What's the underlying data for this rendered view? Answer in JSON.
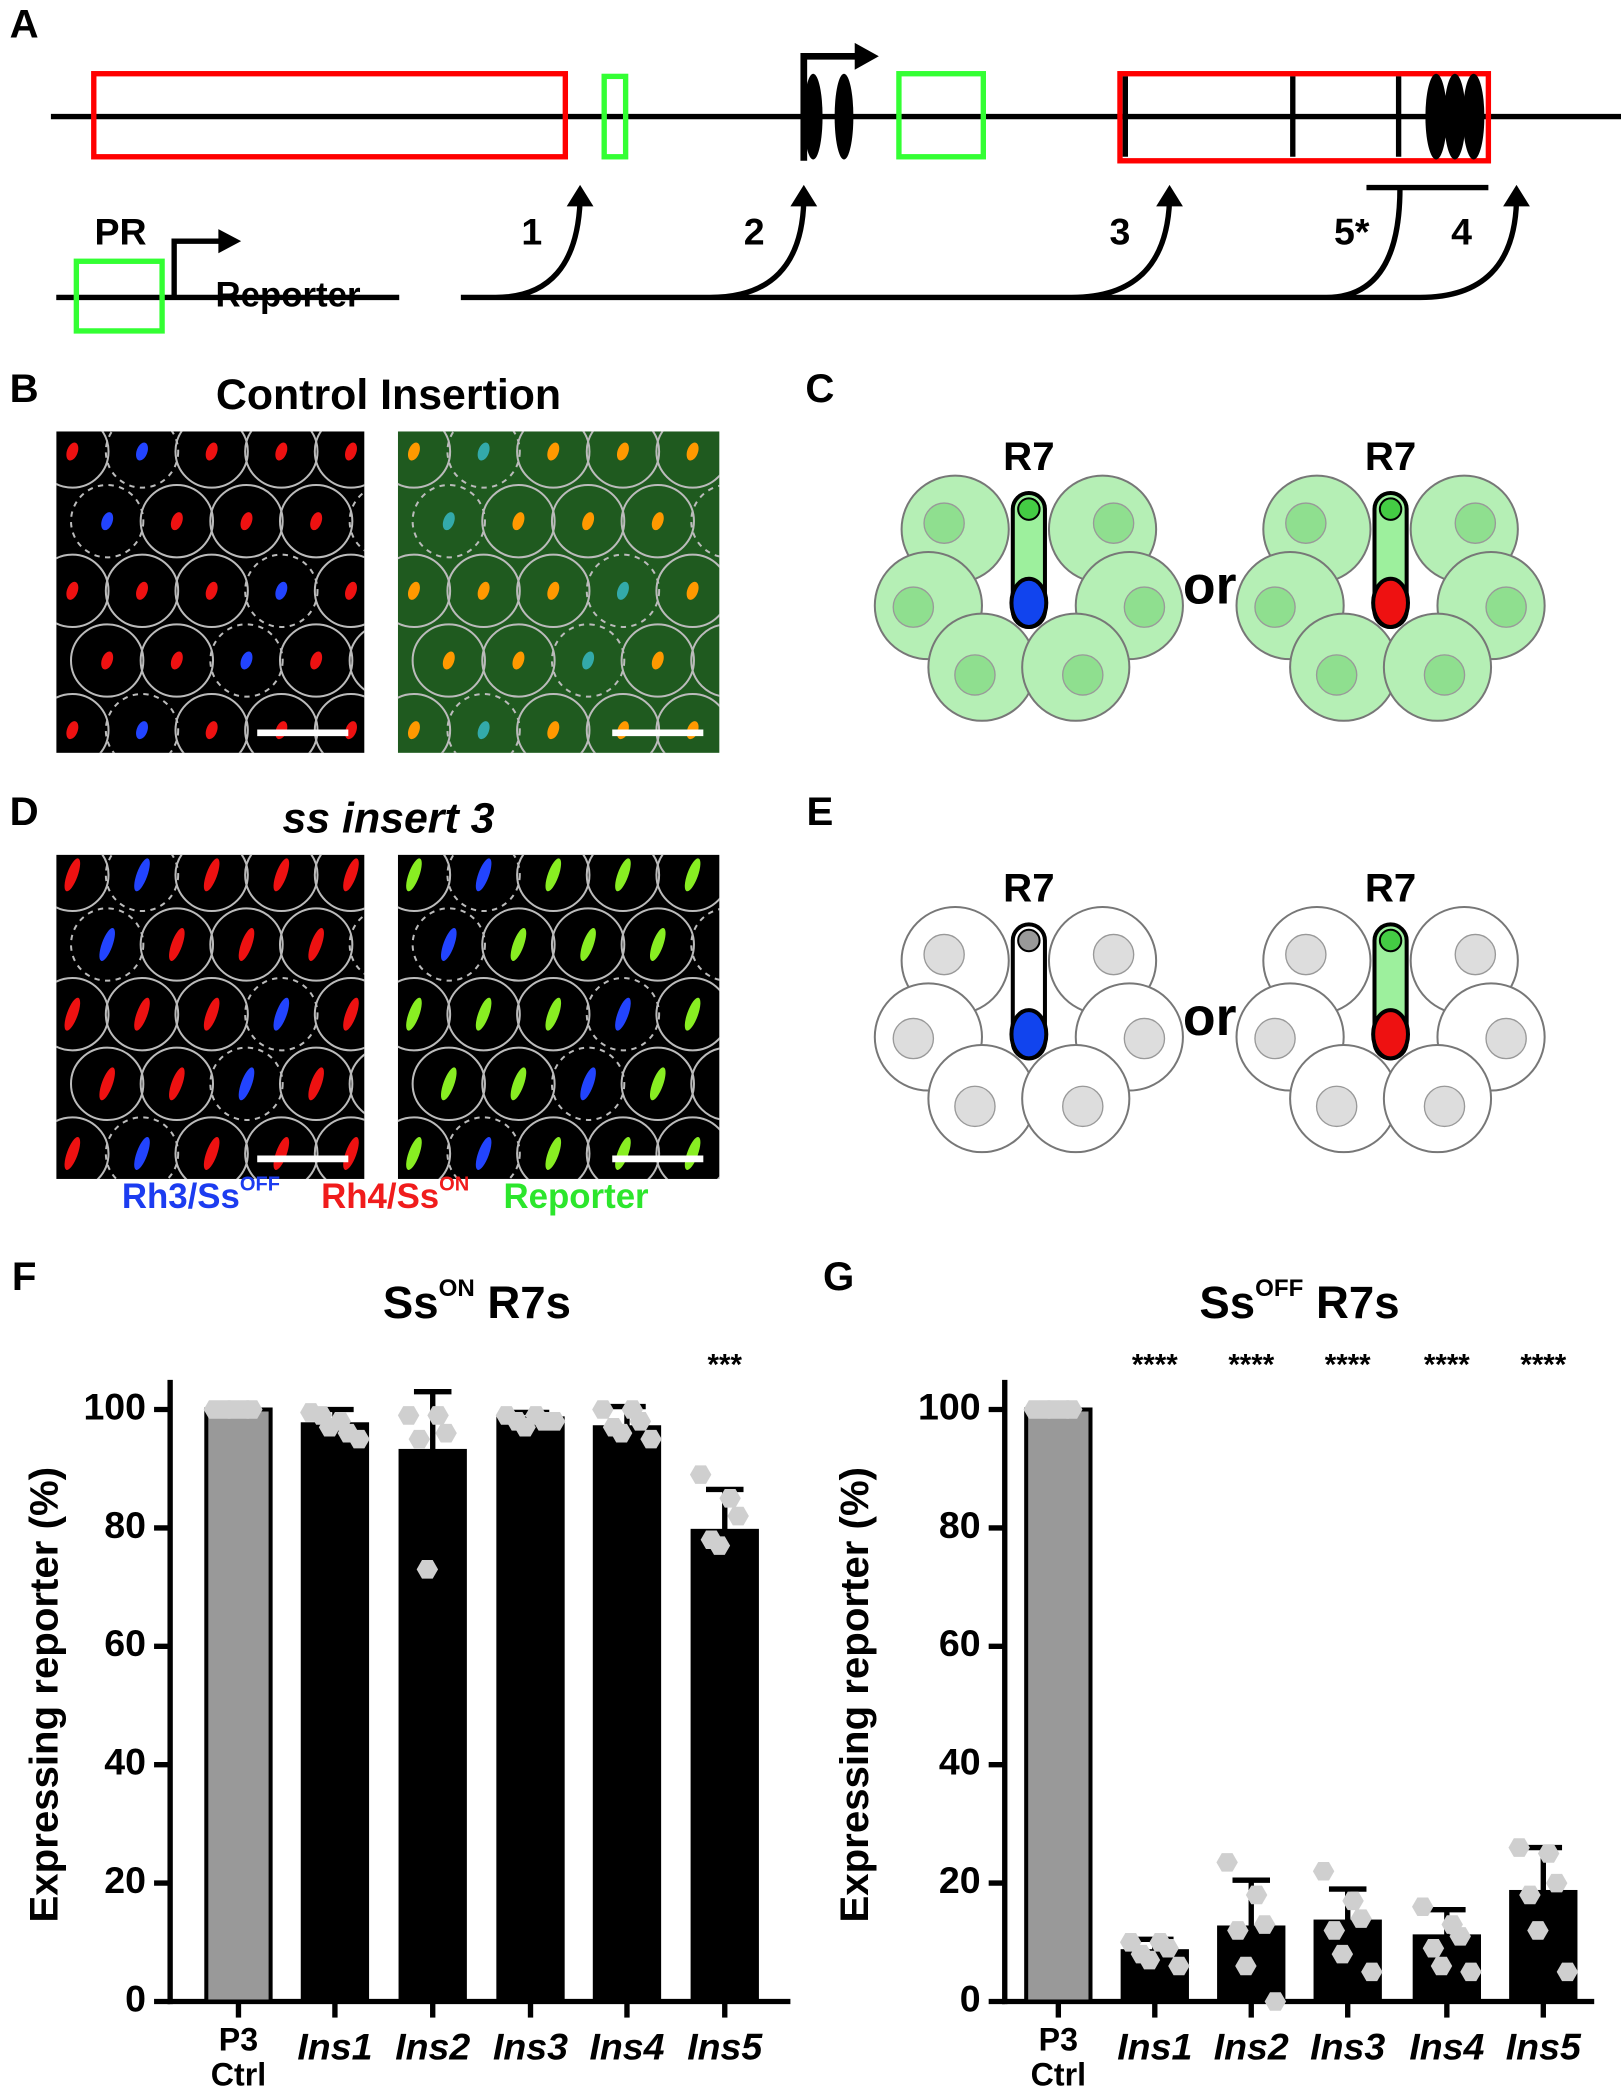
{
  "panel_labels": [
    "A",
    "B",
    "C",
    "D",
    "E",
    "F",
    "G"
  ],
  "panel_a": {
    "pr": "PR",
    "reporter": "Reporter",
    "sites": [
      "1",
      "2",
      "3",
      "5*",
      "4"
    ]
  },
  "panel_b": {
    "title": "Control Insertion"
  },
  "panel_c": {
    "cell_labels": [
      "R7",
      "R7"
    ],
    "or": "or"
  },
  "panel_d": {
    "title": "ss insert 3",
    "legend": [
      {
        "text": "Rh3/Ss",
        "sup": "OFF",
        "color": "#1c3cf0"
      },
      {
        "text": "Rh4/Ss",
        "sup": "ON",
        "color": "#f01c1c"
      },
      {
        "text": "Reporter",
        "color": "#2ce62c"
      }
    ]
  },
  "panel_e": {
    "cell_labels": [
      "R7",
      "R7"
    ],
    "or": "or"
  },
  "chart_data": [
    {
      "type": "bar",
      "title": {
        "text": "Ss",
        "sup": "ON",
        "tail": " R7s"
      },
      "y_label": "Expressing reporter (%)",
      "categories": [
        "P3 Ctrl",
        "Ins1",
        "Ins2",
        "Ins3",
        "Ins4",
        "Ins5"
      ],
      "values": [
        100,
        97.5,
        93,
        98.5,
        97,
        79.5
      ],
      "errors": [
        0,
        2.5,
        10,
        1,
        3.5,
        7
      ],
      "points": [
        [
          100,
          100,
          100,
          100,
          100
        ],
        [
          99.5,
          98,
          96,
          99,
          97,
          95
        ],
        [
          99,
          99,
          96,
          95,
          73
        ],
        [
          99,
          99,
          98,
          98,
          97,
          98
        ],
        [
          100,
          100,
          98,
          97,
          96,
          95
        ],
        [
          89,
          85,
          82,
          78,
          77
        ]
      ],
      "significance": [
        null,
        null,
        null,
        null,
        null,
        "***"
      ],
      "colors": [
        "#999999",
        "#000000",
        "#000000",
        "#000000",
        "#000000",
        "#000000"
      ],
      "point_color": "#cfcfcf",
      "ylim": [
        0,
        105
      ],
      "yticks": [
        0,
        20,
        40,
        60,
        80,
        100
      ]
    },
    {
      "type": "bar",
      "title": {
        "text": "Ss",
        "sup": "OFF",
        "tail": " R7s"
      },
      "y_label": "Expressing reporter (%)",
      "categories": [
        "P3 Ctrl",
        "Ins1",
        "Ins2",
        "Ins3",
        "Ins4",
        "Ins5"
      ],
      "values": [
        100,
        8.5,
        12.5,
        13.5,
        11,
        18.5
      ],
      "errors": [
        0,
        2,
        8,
        5.5,
        4.5,
        7.5
      ],
      "points": [
        [
          100,
          100,
          100,
          100,
          100
        ],
        [
          10,
          10,
          9,
          8,
          7,
          6
        ],
        [
          23.5,
          18,
          13,
          12,
          6,
          0
        ],
        [
          22,
          17,
          14,
          12,
          8,
          5
        ],
        [
          16,
          13,
          11,
          9,
          6,
          5
        ],
        [
          26,
          25,
          20,
          18,
          12,
          5
        ]
      ],
      "significance": [
        null,
        "****",
        "****",
        "****",
        "****",
        "****"
      ],
      "colors": [
        "#999999",
        "#000000",
        "#000000",
        "#000000",
        "#000000",
        "#000000"
      ],
      "point_color": "#cfcfcf",
      "ylim": [
        0,
        105
      ],
      "yticks": [
        0,
        20,
        40,
        60,
        80,
        100
      ]
    }
  ]
}
